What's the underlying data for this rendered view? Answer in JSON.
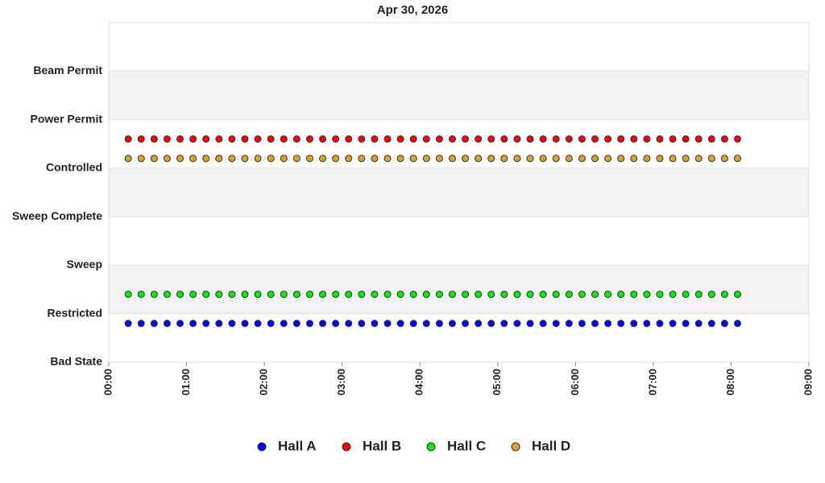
{
  "chart_data": {
    "type": "scatter",
    "title": "Apr 30, 2026",
    "x": [
      15,
      25,
      35,
      45,
      55,
      65,
      75,
      85,
      95,
      105,
      115,
      125,
      135,
      145,
      155,
      165,
      175,
      185,
      195,
      205,
      215,
      225,
      235,
      245,
      255,
      265,
      275,
      285,
      295,
      305,
      315,
      325,
      335,
      345,
      355,
      365,
      375,
      385,
      395,
      405,
      415,
      425,
      435,
      445,
      455,
      465,
      475,
      485
    ],
    "series": [
      {
        "name": "Hall A",
        "color": "#0000ff",
        "values": [
          0.8,
          0.8,
          0.8,
          0.8,
          0.8,
          0.8,
          0.8,
          0.8,
          0.8,
          0.8,
          0.8,
          0.8,
          0.8,
          0.8,
          0.8,
          0.8,
          0.8,
          0.8,
          0.8,
          0.8,
          0.8,
          0.8,
          0.8,
          0.8,
          0.8,
          0.8,
          0.8,
          0.8,
          0.8,
          0.8,
          0.8,
          0.8,
          0.8,
          0.8,
          0.8,
          0.8,
          0.8,
          0.8,
          0.8,
          0.8,
          0.8,
          0.8,
          0.8,
          0.8,
          0.8,
          0.8,
          0.8,
          0.8
        ]
      },
      {
        "name": "Hall B",
        "color": "#ff0000",
        "values": [
          4.6,
          4.6,
          4.6,
          4.6,
          4.6,
          4.6,
          4.6,
          4.6,
          4.6,
          4.6,
          4.6,
          4.6,
          4.6,
          4.6,
          4.6,
          4.6,
          4.6,
          4.6,
          4.6,
          4.6,
          4.6,
          4.6,
          4.6,
          4.6,
          4.6,
          4.6,
          4.6,
          4.6,
          4.6,
          4.6,
          4.6,
          4.6,
          4.6,
          4.6,
          4.6,
          4.6,
          4.6,
          4.6,
          4.6,
          4.6,
          4.6,
          4.6,
          4.6,
          4.6,
          4.6,
          4.6,
          4.6,
          4.6
        ]
      },
      {
        "name": "Hall C",
        "color": "#00ee00",
        "values": [
          1.4,
          1.4,
          1.4,
          1.4,
          1.4,
          1.4,
          1.4,
          1.4,
          1.4,
          1.4,
          1.4,
          1.4,
          1.4,
          1.4,
          1.4,
          1.4,
          1.4,
          1.4,
          1.4,
          1.4,
          1.4,
          1.4,
          1.4,
          1.4,
          1.4,
          1.4,
          1.4,
          1.4,
          1.4,
          1.4,
          1.4,
          1.4,
          1.4,
          1.4,
          1.4,
          1.4,
          1.4,
          1.4,
          1.4,
          1.4,
          1.4,
          1.4,
          1.4,
          1.4,
          1.4,
          1.4,
          1.4,
          1.4
        ]
      },
      {
        "name": "Hall D",
        "color": "#e0a030",
        "values": [
          4.2,
          4.2,
          4.2,
          4.2,
          4.2,
          4.2,
          4.2,
          4.2,
          4.2,
          4.2,
          4.2,
          4.2,
          4.2,
          4.2,
          4.2,
          4.2,
          4.2,
          4.2,
          4.2,
          4.2,
          4.2,
          4.2,
          4.2,
          4.2,
          4.2,
          4.2,
          4.2,
          4.2,
          4.2,
          4.2,
          4.2,
          4.2,
          4.2,
          4.2,
          4.2,
          4.2,
          4.2,
          4.2,
          4.2,
          4.2,
          4.2,
          4.2,
          4.2,
          4.2,
          4.2,
          4.2,
          4.2,
          4.2
        ]
      }
    ],
    "xlim": [
      0,
      540
    ],
    "xticks": [
      {
        "value": 0,
        "label": "00:00"
      },
      {
        "value": 60,
        "label": "01:00"
      },
      {
        "value": 120,
        "label": "02:00"
      },
      {
        "value": 180,
        "label": "03:00"
      },
      {
        "value": 240,
        "label": "04:00"
      },
      {
        "value": 300,
        "label": "05:00"
      },
      {
        "value": 360,
        "label": "06:00"
      },
      {
        "value": 420,
        "label": "07:00"
      },
      {
        "value": 480,
        "label": "08:00"
      },
      {
        "value": 540,
        "label": "09:00"
      }
    ],
    "ylim": [
      0,
      7
    ],
    "yticks": [
      {
        "value": 0,
        "label": "Bad State"
      },
      {
        "value": 1,
        "label": "Restricted"
      },
      {
        "value": 2,
        "label": "Sweep"
      },
      {
        "value": 3,
        "label": "Sweep Complete"
      },
      {
        "value": 4,
        "label": "Controlled"
      },
      {
        "value": 5,
        "label": "Power Permit"
      },
      {
        "value": 6,
        "label": "Beam Permit"
      }
    ],
    "grid": true
  }
}
